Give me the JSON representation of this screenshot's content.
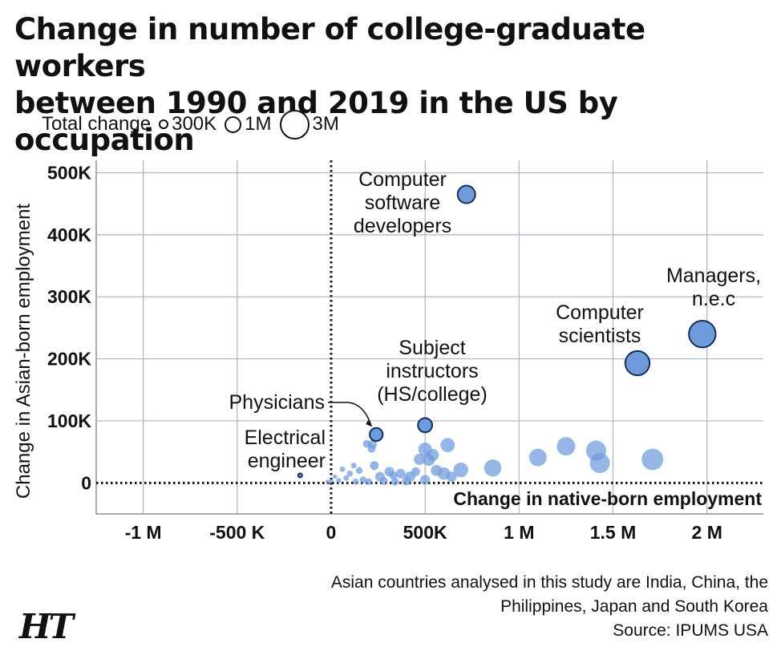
{
  "title_line1": "Change in number of college-graduate workers",
  "title_line2": "between 1990 and 2019 in the US by occupation",
  "legend": {
    "label": "Total change",
    "items": [
      {
        "label": "300K",
        "value": 300000
      },
      {
        "label": "1M",
        "value": 1000000
      },
      {
        "label": "3M",
        "value": 3000000
      }
    ]
  },
  "note": {
    "line1": "Asian countries analysed in this study are India, China, the",
    "line2": "Philippines, Japan and South Korea",
    "line3": "Source: IPUMS USA"
  },
  "logo": "HT",
  "colors": {
    "bubble_fill": "#6e9bdc",
    "bubble_stroke": "#1a2d55",
    "grid": "#aab4c4"
  },
  "chart_data": {
    "type": "scatter",
    "xlabel": "Change in native-born employment",
    "ylabel": "Change in Asian-born employment",
    "xlim": [
      -1250000,
      2300000
    ],
    "ylim": [
      -50000,
      520000
    ],
    "x_ticks": [
      -1000000,
      -500000,
      0,
      500000,
      1000000,
      1500000,
      2000000
    ],
    "x_tick_labels": [
      "-1 M",
      "-500 K",
      "0",
      "500K",
      "1 M",
      "1.5 M",
      "2 M"
    ],
    "y_ticks": [
      0,
      100000,
      200000,
      300000,
      400000,
      500000
    ],
    "y_tick_labels": [
      "0",
      "100K",
      "200K",
      "300K",
      "400K",
      "500K"
    ],
    "grid": true,
    "size_metric": "Total change",
    "labeled_points": [
      {
        "name": "Computer software developers",
        "lines": [
          "Computer",
          "software",
          "developers"
        ],
        "x": 720000,
        "y": 465000,
        "size": 1000000
      },
      {
        "name": "Managers, n.e.c",
        "lines": [
          "Managers,",
          "n.e.c"
        ],
        "x": 1975000,
        "y": 240000,
        "size": 2300000
      },
      {
        "name": "Computer scientists",
        "lines": [
          "Computer",
          "scientists"
        ],
        "x": 1630000,
        "y": 193000,
        "size": 1900000
      },
      {
        "name": "Subject instructors (HS/college)",
        "lines": [
          "Subject",
          "instructors",
          "(HS/college)"
        ],
        "x": 500000,
        "y": 93000,
        "size": 650000
      },
      {
        "name": "Physicians",
        "lines": [
          "Physicians"
        ],
        "x": 240000,
        "y": 78000,
        "size": 550000
      },
      {
        "name": "Electrical engineer",
        "lines": [
          "Electrical",
          "engineer"
        ],
        "x": -165000,
        "y": 12000,
        "size": 20000
      }
    ],
    "other_points": [
      {
        "x": 1710000,
        "y": 38000,
        "size": 1500000
      },
      {
        "x": 1430000,
        "y": 32000,
        "size": 1300000
      },
      {
        "x": 1410000,
        "y": 52000,
        "size": 1300000
      },
      {
        "x": 1250000,
        "y": 59000,
        "size": 1100000
      },
      {
        "x": 1100000,
        "y": 41000,
        "size": 1000000
      },
      {
        "x": 860000,
        "y": 24000,
        "size": 950000
      },
      {
        "x": 690000,
        "y": 21000,
        "size": 700000
      },
      {
        "x": 620000,
        "y": 61000,
        "size": 650000
      },
      {
        "x": 500000,
        "y": 54000,
        "size": 600000
      },
      {
        "x": 540000,
        "y": 45000,
        "size": 500000
      },
      {
        "x": 520000,
        "y": 37000,
        "size": 450000
      },
      {
        "x": 470000,
        "y": 38000,
        "size": 400000
      },
      {
        "x": 420000,
        "y": 10000,
        "size": 350000
      },
      {
        "x": 600000,
        "y": 15000,
        "size": 500000
      },
      {
        "x": 560000,
        "y": 20000,
        "size": 400000
      },
      {
        "x": 640000,
        "y": 10000,
        "size": 350000
      },
      {
        "x": 500000,
        "y": 5000,
        "size": 300000
      },
      {
        "x": 370000,
        "y": 15000,
        "size": 300000
      },
      {
        "x": 310000,
        "y": 18000,
        "size": 300000
      },
      {
        "x": 260000,
        "y": 10000,
        "size": 300000
      },
      {
        "x": 220000,
        "y": 62000,
        "size": 250000
      },
      {
        "x": 190000,
        "y": 63000,
        "size": 200000
      },
      {
        "x": 215000,
        "y": 55000,
        "size": 200000
      },
      {
        "x": 230000,
        "y": 28000,
        "size": 250000
      },
      {
        "x": 150000,
        "y": 20000,
        "size": 150000
      },
      {
        "x": 170000,
        "y": 5000,
        "size": 150000
      },
      {
        "x": 100000,
        "y": 15000,
        "size": 120000
      },
      {
        "x": 80000,
        "y": 8000,
        "size": 100000
      },
      {
        "x": 60000,
        "y": 22000,
        "size": 100000
      },
      {
        "x": 40000,
        "y": 4000,
        "size": 80000
      },
      {
        "x": 20000,
        "y": 10000,
        "size": 60000
      },
      {
        "x": 0,
        "y": 3000,
        "size": 50000
      },
      {
        "x": -20000,
        "y": 2000,
        "size": 40000
      },
      {
        "x": 130000,
        "y": 2000,
        "size": 120000
      },
      {
        "x": 200000,
        "y": 2000,
        "size": 150000
      },
      {
        "x": 280000,
        "y": 3000,
        "size": 200000
      },
      {
        "x": 340000,
        "y": 2000,
        "size": 200000
      },
      {
        "x": 400000,
        "y": 3000,
        "size": 250000
      },
      {
        "x": 450000,
        "y": 18000,
        "size": 250000
      },
      {
        "x": 330000,
        "y": 12000,
        "size": 200000
      },
      {
        "x": 120000,
        "y": 28000,
        "size": 100000
      }
    ]
  }
}
